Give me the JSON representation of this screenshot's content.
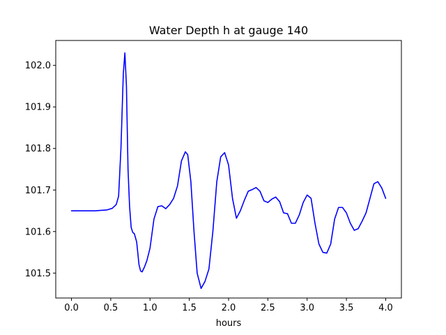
{
  "chart_data": {
    "type": "line",
    "title": "Water Depth h at gauge 140",
    "xlabel": "hours",
    "ylabel": "",
    "xlim": [
      -0.2,
      4.2
    ],
    "ylim": [
      101.44,
      102.06
    ],
    "x_ticks": [
      0.0,
      0.5,
      1.0,
      1.5,
      2.0,
      2.5,
      3.0,
      3.5,
      4.0
    ],
    "x_tick_labels": [
      "0.0",
      "0.5",
      "1.0",
      "1.5",
      "2.0",
      "2.5",
      "3.0",
      "3.5",
      "4.0"
    ],
    "y_ticks": [
      101.5,
      101.6,
      101.7,
      101.8,
      101.9,
      102.0
    ],
    "y_tick_labels": [
      "101.5",
      "101.6",
      "101.7",
      "101.8",
      "101.9",
      "102.0"
    ],
    "grid": false,
    "line_color": "#0000ff",
    "series": [
      {
        "name": "",
        "x": [
          0.0,
          0.3,
          0.45,
          0.52,
          0.57,
          0.6,
          0.63,
          0.66,
          0.68,
          0.7,
          0.72,
          0.74,
          0.76,
          0.78,
          0.8,
          0.83,
          0.86,
          0.88,
          0.9,
          0.93,
          0.96,
          1.0,
          1.05,
          1.1,
          1.15,
          1.2,
          1.25,
          1.3,
          1.35,
          1.4,
          1.45,
          1.48,
          1.52,
          1.56,
          1.6,
          1.65,
          1.7,
          1.75,
          1.8,
          1.85,
          1.9,
          1.95,
          2.0,
          2.05,
          2.1,
          2.15,
          2.2,
          2.25,
          2.3,
          2.35,
          2.4,
          2.45,
          2.5,
          2.55,
          2.6,
          2.65,
          2.7,
          2.75,
          2.8,
          2.85,
          2.9,
          2.95,
          3.0,
          3.05,
          3.1,
          3.15,
          3.2,
          3.25,
          3.3,
          3.35,
          3.4,
          3.45,
          3.5,
          3.55,
          3.6,
          3.65,
          3.7,
          3.75,
          3.8,
          3.85,
          3.9,
          3.95,
          4.0
        ],
        "y": [
          101.65,
          101.65,
          101.652,
          101.656,
          101.665,
          101.685,
          101.8,
          101.98,
          102.03,
          101.95,
          101.75,
          101.66,
          101.61,
          101.598,
          101.595,
          101.575,
          101.52,
          101.505,
          101.503,
          101.515,
          101.53,
          101.56,
          101.63,
          101.66,
          101.662,
          101.655,
          101.665,
          101.68,
          101.71,
          101.77,
          101.792,
          101.785,
          101.72,
          101.6,
          101.5,
          101.463,
          101.48,
          101.51,
          101.6,
          101.72,
          101.78,
          101.79,
          101.76,
          101.68,
          101.632,
          101.65,
          101.675,
          101.697,
          101.701,
          101.706,
          101.697,
          101.674,
          101.67,
          101.678,
          101.683,
          101.672,
          101.645,
          101.643,
          101.62,
          101.62,
          101.64,
          101.67,
          101.688,
          101.68,
          101.62,
          101.57,
          101.55,
          101.548,
          101.57,
          101.63,
          101.658,
          101.658,
          101.645,
          101.62,
          101.603,
          101.607,
          101.625,
          101.645,
          101.68,
          101.715,
          101.72,
          101.705,
          101.68
        ]
      }
    ]
  }
}
